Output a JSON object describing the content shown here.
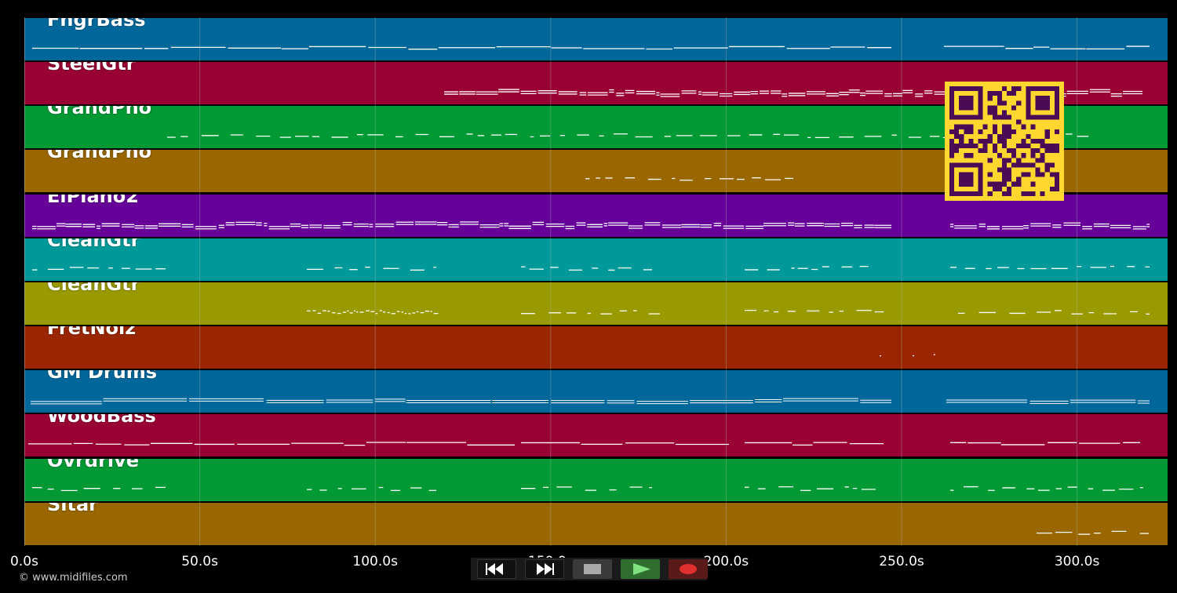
{
  "tracks": [
    {
      "name": "FngrBass",
      "color": "#00679b"
    },
    {
      "name": "SteelGtr",
      "color": "#990033"
    },
    {
      "name": "GrandPno",
      "color": "#009933"
    },
    {
      "name": "GrandPno",
      "color": "#996600"
    },
    {
      "name": "ElPiano2",
      "color": "#660099"
    },
    {
      "name": "CleanGtr",
      "color": "#009999"
    },
    {
      "name": "CleanGtr",
      "color": "#999900"
    },
    {
      "name": "FretNoiz",
      "color": "#992600"
    },
    {
      "name": "GM Drums",
      "color": "#00679b"
    },
    {
      "name": "WoodBass",
      "color": "#990033"
    },
    {
      "name": "Ovrdrive",
      "color": "#009933"
    },
    {
      "name": "Sitar",
      "color": "#996600"
    }
  ],
  "timeline": {
    "ticks": [
      "0.0s",
      "50.0s",
      "100.0s",
      "150.0s",
      "200.0s",
      "250.0s",
      "300.0s"
    ],
    "tick_seconds": [
      0,
      50,
      100,
      150,
      200,
      250,
      300
    ],
    "duration_seconds": 326
  },
  "transport": {
    "buttons": [
      {
        "name": "rewind",
        "icon": "rewind-icon"
      },
      {
        "name": "fast-forward",
        "icon": "fast-forward-icon"
      },
      {
        "name": "stop",
        "icon": "stop-icon"
      },
      {
        "name": "play",
        "icon": "play-icon"
      },
      {
        "name": "record",
        "icon": "record-icon"
      }
    ]
  },
  "footer": {
    "copyright": "© www.midifiles.com"
  },
  "colors": {
    "qr_background": "#ffd72f",
    "qr_modules": "#4a0c55",
    "grid": "#bbbbbb"
  }
}
